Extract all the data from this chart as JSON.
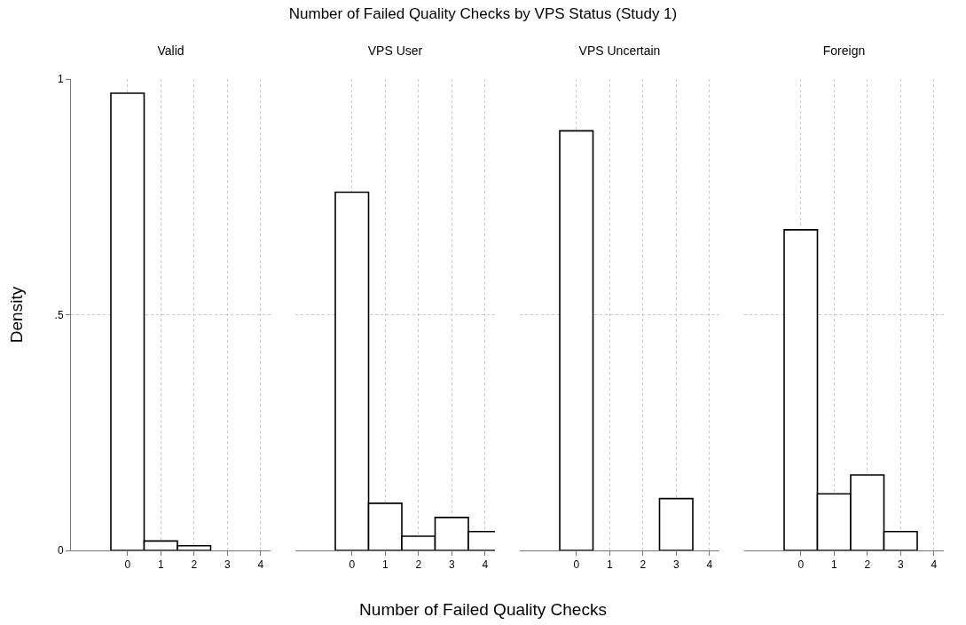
{
  "chart_data": [
    {
      "type": "histogram",
      "title": "Valid",
      "xlabel": "Number of Failed Quality Checks",
      "ylabel": "Density",
      "annotations": [
        "Number of Failed Quality Checks by VPS Status (Study 1)"
      ],
      "bins": [
        -0.5,
        0.5,
        1.5,
        2.5,
        3.5,
        4.5
      ],
      "values": [
        0.97,
        0.02,
        0.01,
        0,
        0
      ],
      "color": "#ffffff",
      "xlim": [
        -1.7,
        4.3
      ],
      "xticks": [
        0,
        1,
        2,
        3,
        4
      ],
      "ylim": [
        0,
        1
      ],
      "yticks": [
        {
          "value": 0,
          "label": "0"
        },
        {
          "value": 0.5,
          "label": ".5"
        },
        {
          "value": 1,
          "label": "1"
        }
      ],
      "grid": true
    },
    {
      "type": "histogram",
      "title": "VPS User",
      "bins": [
        -0.5,
        0.5,
        1.5,
        2.5,
        3.5,
        4.5
      ],
      "values": [
        0.76,
        0.1,
        0.03,
        0.07,
        0.04
      ],
      "color": "#ffffff",
      "xlim": [
        -1.7,
        4.3
      ],
      "xticks": [
        0,
        1,
        2,
        3,
        4
      ],
      "ylim": [
        0,
        1
      ],
      "yticks": [
        {
          "value": 0,
          "label": null
        },
        {
          "value": 0.5,
          "label": null
        },
        {
          "value": 1,
          "label": null
        }
      ],
      "grid": true,
      "tick_labels": "x"
    },
    {
      "type": "histogram",
      "title": "VPS Uncertain",
      "bins": [
        -0.5,
        0.5,
        1.5,
        2.5,
        3.5,
        4.5
      ],
      "values": [
        0.89,
        0,
        0,
        0.11,
        0
      ],
      "color": "#ffffff",
      "xlim": [
        -1.7,
        4.3
      ],
      "xticks": [
        0,
        1,
        2,
        3,
        4
      ],
      "ylim": [
        0,
        1
      ],
      "yticks": [
        {
          "value": 0,
          "label": null
        },
        {
          "value": 0.5,
          "label": null
        },
        {
          "value": 1,
          "label": null
        }
      ],
      "grid": true,
      "tick_labels": "x"
    },
    {
      "type": "histogram",
      "title": "Foreign",
      "bins": [
        -0.5,
        0.5,
        1.5,
        2.5,
        3.5,
        4.5
      ],
      "values": [
        0.68,
        0.12,
        0.16,
        0.04,
        0
      ],
      "color": "#ffffff",
      "xlim": [
        -1.7,
        4.3
      ],
      "xticks": [
        0,
        1,
        2,
        3,
        4
      ],
      "ylim": [
        0,
        1
      ],
      "yticks": [
        {
          "value": 0,
          "label": null
        },
        {
          "value": 0.5,
          "label": null
        },
        {
          "value": 1,
          "label": null
        }
      ],
      "grid": true,
      "tick_labels": "x"
    }
  ]
}
